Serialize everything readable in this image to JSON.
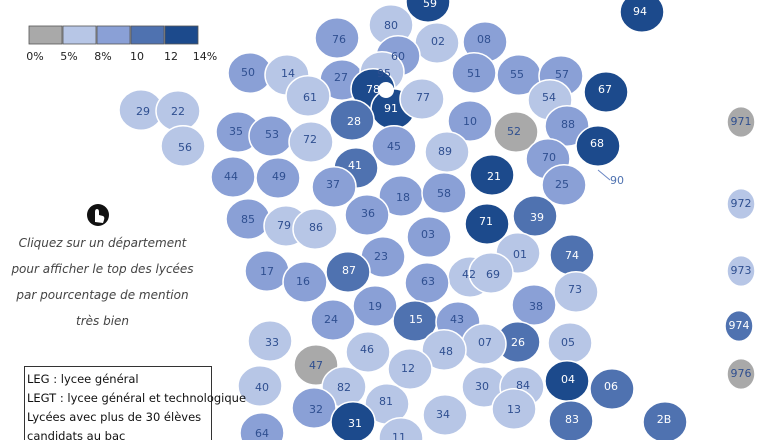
{
  "legend": {
    "colors": [
      "#a9a9a9",
      "#b7c6e6",
      "#8aa0d6",
      "#4f72b0",
      "#1c4a8c"
    ],
    "labels": [
      "0%",
      "5%",
      "8%",
      "10",
      "12",
      "14%"
    ]
  },
  "hint": [
    "Cliquez sur un département",
    "pour afficher le top des lycées",
    "par pourcentage de mention",
    "très bien"
  ],
  "info": [
    "LEG : lycee général",
    "LEGT : lycee général et technologique",
    "Lycées avec plus de 30 élèves",
    "candidats au bac"
  ],
  "departments": [
    {
      "code": "59",
      "color": "#1c4a8c"
    },
    {
      "code": "80",
      "color": "#b7c6e6"
    },
    {
      "code": "94",
      "color": "#1c4a8c"
    },
    {
      "code": "02",
      "color": "#b7c6e6"
    },
    {
      "code": "08",
      "color": "#8aa0d6"
    },
    {
      "code": "76",
      "color": "#8aa0d6"
    },
    {
      "code": "60",
      "color": "#8aa0d6"
    },
    {
      "code": "50",
      "color": "#8aa0d6"
    },
    {
      "code": "14",
      "color": "#b7c6e6"
    },
    {
      "code": "27",
      "color": "#8aa0d6"
    },
    {
      "code": "95",
      "color": "#b7c6e6"
    },
    {
      "code": "51",
      "color": "#8aa0d6"
    },
    {
      "code": "55",
      "color": "#8aa0d6"
    },
    {
      "code": "57",
      "color": "#8aa0d6"
    },
    {
      "code": "67",
      "color": "#1c4a8c"
    },
    {
      "code": "61",
      "color": "#b7c6e6"
    },
    {
      "code": "78",
      "color": "#1c4a8c"
    },
    {
      "code": "91",
      "color": "#1c4a8c"
    },
    {
      "code": "77",
      "color": "#b7c6e6"
    },
    {
      "code": "54",
      "color": "#b7c6e6"
    },
    {
      "code": "29",
      "color": "#b7c6e6"
    },
    {
      "code": "22",
      "color": "#b7c6e6"
    },
    {
      "code": "35",
      "color": "#8aa0d6"
    },
    {
      "code": "53",
      "color": "#8aa0d6"
    },
    {
      "code": "72",
      "color": "#b7c6e6"
    },
    {
      "code": "28",
      "color": "#4f72b0"
    },
    {
      "code": "10",
      "color": "#8aa0d6"
    },
    {
      "code": "52",
      "color": "#a9a9a9"
    },
    {
      "code": "88",
      "color": "#8aa0d6"
    },
    {
      "code": "68",
      "color": "#1c4a8c"
    },
    {
      "code": "56",
      "color": "#b7c6e6"
    },
    {
      "code": "45",
      "color": "#8aa0d6"
    },
    {
      "code": "89",
      "color": "#b7c6e6"
    },
    {
      "code": "70",
      "color": "#8aa0d6"
    },
    {
      "code": "41",
      "color": "#4f72b0"
    },
    {
      "code": "21",
      "color": "#1c4a8c"
    },
    {
      "code": "90",
      "color": "#b7c6e6"
    },
    {
      "code": "44",
      "color": "#8aa0d6"
    },
    {
      "code": "49",
      "color": "#8aa0d6"
    },
    {
      "code": "37",
      "color": "#8aa0d6"
    },
    {
      "code": "18",
      "color": "#8aa0d6"
    },
    {
      "code": "58",
      "color": "#8aa0d6"
    },
    {
      "code": "25",
      "color": "#8aa0d6"
    },
    {
      "code": "36",
      "color": "#8aa0d6"
    },
    {
      "code": "71",
      "color": "#1c4a8c"
    },
    {
      "code": "39",
      "color": "#4f72b0"
    },
    {
      "code": "85",
      "color": "#8aa0d6"
    },
    {
      "code": "79",
      "color": "#b7c6e6"
    },
    {
      "code": "86",
      "color": "#b7c6e6"
    },
    {
      "code": "03",
      "color": "#8aa0d6"
    },
    {
      "code": "01",
      "color": "#b7c6e6"
    },
    {
      "code": "74",
      "color": "#4f72b0"
    },
    {
      "code": "23",
      "color": "#8aa0d6"
    },
    {
      "code": "87",
      "color": "#4f72b0"
    },
    {
      "code": "42",
      "color": "#b7c6e6"
    },
    {
      "code": "69",
      "color": "#b7c6e6"
    },
    {
      "code": "17",
      "color": "#8aa0d6"
    },
    {
      "code": "16",
      "color": "#8aa0d6"
    },
    {
      "code": "63",
      "color": "#8aa0d6"
    },
    {
      "code": "73",
      "color": "#b7c6e6"
    },
    {
      "code": "38",
      "color": "#8aa0d6"
    },
    {
      "code": "19",
      "color": "#8aa0d6"
    },
    {
      "code": "24",
      "color": "#8aa0d6"
    },
    {
      "code": "15",
      "color": "#4f72b0"
    },
    {
      "code": "43",
      "color": "#8aa0d6"
    },
    {
      "code": "33",
      "color": "#b7c6e6"
    },
    {
      "code": "26",
      "color": "#4f72b0"
    },
    {
      "code": "05",
      "color": "#b7c6e6"
    },
    {
      "code": "07",
      "color": "#b7c6e6"
    },
    {
      "code": "46",
      "color": "#b7c6e6"
    },
    {
      "code": "48",
      "color": "#b7c6e6"
    },
    {
      "code": "47",
      "color": "#a9a9a9"
    },
    {
      "code": "12",
      "color": "#b7c6e6"
    },
    {
      "code": "04",
      "color": "#1c4a8c"
    },
    {
      "code": "06",
      "color": "#4f72b0"
    },
    {
      "code": "40",
      "color": "#b7c6e6"
    },
    {
      "code": "82",
      "color": "#b7c6e6"
    },
    {
      "code": "30",
      "color": "#b7c6e6"
    },
    {
      "code": "84",
      "color": "#b7c6e6"
    },
    {
      "code": "81",
      "color": "#b7c6e6"
    },
    {
      "code": "32",
      "color": "#8aa0d6"
    },
    {
      "code": "13",
      "color": "#b7c6e6"
    },
    {
      "code": "34",
      "color": "#b7c6e6"
    },
    {
      "code": "83",
      "color": "#4f72b0"
    },
    {
      "code": "2B",
      "color": "#4f72b0"
    },
    {
      "code": "31",
      "color": "#1c4a8c"
    },
    {
      "code": "64",
      "color": "#8aa0d6"
    },
    {
      "code": "11",
      "color": "#b7c6e6"
    },
    {
      "code": "971",
      "color": "#a9a9a9"
    },
    {
      "code": "972",
      "color": "#b7c6e6"
    },
    {
      "code": "973",
      "color": "#b7c6e6"
    },
    {
      "code": "974",
      "color": "#4f72b0"
    },
    {
      "code": "976",
      "color": "#a9a9a9"
    }
  ]
}
